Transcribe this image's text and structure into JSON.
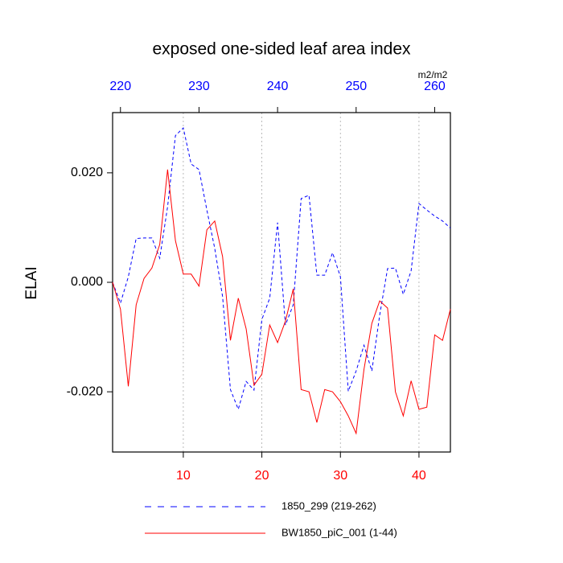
{
  "chart_data": {
    "type": "line",
    "title": "exposed one-sided leaf area index",
    "ylabel": "ELAI",
    "top_axis_units": "m2/m2",
    "xlim": [
      1,
      44
    ],
    "xticks": [
      10,
      20,
      30,
      40
    ],
    "xtick_color": "#ff0000",
    "x2lim": [
      219,
      262
    ],
    "x2ticks": [
      220,
      230,
      240,
      250,
      260
    ],
    "x2tick_color": "#0000ff",
    "ylim": [
      -0.031,
      0.031
    ],
    "yticks": [
      {
        "value": -0.02,
        "label": "-0.020"
      },
      {
        "value": 0,
        "label": "0.000"
      },
      {
        "value": 0.02,
        "label": "0.020"
      }
    ],
    "grid": true,
    "series": [
      {
        "name": "1850_299 (219-262)",
        "color": "#0000ff",
        "dashed": true,
        "axis": "x2",
        "x": [
          219,
          220,
          221,
          222,
          223,
          224,
          225,
          226,
          227,
          228,
          229,
          230,
          231,
          232,
          233,
          234,
          235,
          236,
          237,
          238,
          239,
          240,
          241,
          242,
          243,
          244,
          245,
          246,
          247,
          248,
          249,
          250,
          251,
          252,
          253,
          254,
          255,
          256,
          257,
          258,
          259,
          260,
          261,
          262
        ],
        "values": [
          0,
          -0.0038,
          0.001,
          0.008,
          0.0081,
          0.0081,
          0.0044,
          0.0138,
          0.0268,
          0.0282,
          0.0216,
          0.0206,
          0.0132,
          0.0062,
          -0.0026,
          -0.0196,
          -0.0232,
          -0.0181,
          -0.0197,
          -0.0068,
          -0.0029,
          0.0109,
          -0.0078,
          -0.0041,
          0.0153,
          0.0159,
          0.0013,
          0.0013,
          0.0054,
          0.001,
          -0.0199,
          -0.0162,
          -0.0115,
          -0.0162,
          -0.006,
          0.0025,
          0.0026,
          -0.0022,
          0.0021,
          0.0144,
          0.0132,
          0.0121,
          0.0112,
          0.0099
        ]
      },
      {
        "name": "BW1850_piC_001 (1-44)",
        "color": "#ff0000",
        "dashed": false,
        "x": [
          1,
          2,
          3,
          4,
          5,
          6,
          7,
          8,
          9,
          10,
          11,
          12,
          13,
          14,
          15,
          16,
          17,
          18,
          19,
          20,
          21,
          22,
          23,
          24,
          25,
          26,
          27,
          28,
          29,
          30,
          31,
          32,
          33,
          34,
          35,
          36,
          37,
          38,
          39,
          40,
          41,
          42,
          43,
          44
        ],
        "values": [
          0,
          -0.0049,
          -0.019,
          -0.0041,
          0.0007,
          0.0026,
          0.0069,
          0.0206,
          0.0076,
          0.0015,
          0.0015,
          -0.0007,
          0.0096,
          0.0112,
          0.0047,
          -0.0106,
          -0.0029,
          -0.0085,
          -0.0188,
          -0.0168,
          -0.0078,
          -0.011,
          -0.0071,
          -0.0012,
          -0.0196,
          -0.02,
          -0.0256,
          -0.0196,
          -0.02,
          -0.0218,
          -0.0244,
          -0.0276,
          -0.0159,
          -0.0075,
          -0.0034,
          -0.0047,
          -0.02,
          -0.0244,
          -0.018,
          -0.0232,
          -0.0228,
          -0.0096,
          -0.0106,
          -0.0049
        ]
      }
    ]
  }
}
